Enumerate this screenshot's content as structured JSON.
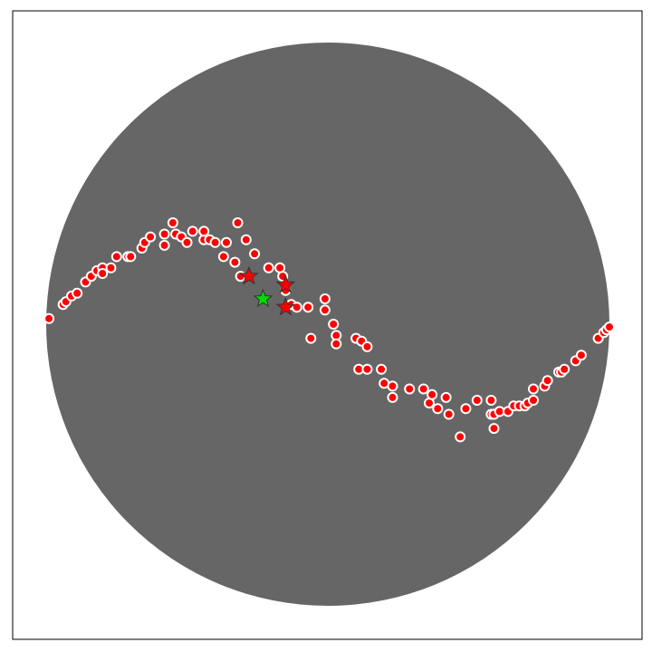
{
  "chart_data": {
    "type": "scatter",
    "title": "",
    "xlabel": "",
    "ylabel": "",
    "grid": false,
    "legend": "none",
    "xlim": [
      -1.0,
      1.0
    ],
    "ylim": [
      -1.0,
      1.0
    ],
    "colors": {
      "disk": "#666666",
      "point_fill": "#ff0000",
      "point_edge": "#ffffff",
      "star_fill_red": "#ff0000",
      "star_fill_green": "#00dd00",
      "star_edge": "#333333",
      "frame": "#000000"
    },
    "circle_points": [
      [
        -0.99,
        0.02
      ],
      [
        -0.94,
        0.07
      ],
      [
        -0.93,
        0.08
      ],
      [
        -0.91,
        0.1
      ],
      [
        -0.89,
        0.11
      ],
      [
        -0.86,
        0.15
      ],
      [
        -0.84,
        0.17
      ],
      [
        -0.82,
        0.19
      ],
      [
        -0.8,
        0.2
      ],
      [
        -0.8,
        0.18
      ],
      [
        -0.77,
        0.2
      ],
      [
        -0.75,
        0.24
      ],
      [
        -0.71,
        0.24
      ],
      [
        -0.7,
        0.24
      ],
      [
        -0.66,
        0.27
      ],
      [
        -0.65,
        0.29
      ],
      [
        -0.63,
        0.31
      ],
      [
        -0.58,
        0.32
      ],
      [
        -0.58,
        0.28
      ],
      [
        -0.55,
        0.36
      ],
      [
        -0.54,
        0.32
      ],
      [
        -0.52,
        0.31
      ],
      [
        -0.5,
        0.29
      ],
      [
        -0.48,
        0.33
      ],
      [
        -0.44,
        0.3
      ],
      [
        -0.44,
        0.33
      ],
      [
        -0.42,
        0.3
      ],
      [
        -0.4,
        0.29
      ],
      [
        -0.37,
        0.24
      ],
      [
        -0.36,
        0.29
      ],
      [
        -0.33,
        0.22
      ],
      [
        -0.32,
        0.36
      ],
      [
        -0.31,
        0.17
      ],
      [
        -0.29,
        0.3
      ],
      [
        -0.26,
        0.25
      ],
      [
        -0.21,
        0.2
      ],
      [
        -0.17,
        0.2
      ],
      [
        -0.16,
        0.17
      ],
      [
        -0.15,
        0.12
      ],
      [
        -0.13,
        0.07
      ],
      [
        -0.11,
        0.06
      ],
      [
        -0.07,
        0.06
      ],
      [
        -0.06,
        -0.05
      ],
      [
        -0.01,
        0.09
      ],
      [
        -0.01,
        0.05
      ],
      [
        0.02,
        0.0
      ],
      [
        0.03,
        -0.04
      ],
      [
        0.03,
        -0.07
      ],
      [
        0.1,
        -0.05
      ],
      [
        0.12,
        -0.06
      ],
      [
        0.14,
        -0.08
      ],
      [
        0.11,
        -0.16
      ],
      [
        0.14,
        -0.16
      ],
      [
        0.19,
        -0.16
      ],
      [
        0.2,
        -0.21
      ],
      [
        0.23,
        -0.22
      ],
      [
        0.23,
        -0.26
      ],
      [
        0.29,
        -0.23
      ],
      [
        0.34,
        -0.23
      ],
      [
        0.36,
        -0.28
      ],
      [
        0.37,
        -0.25
      ],
      [
        0.39,
        -0.3
      ],
      [
        0.42,
        -0.26
      ],
      [
        0.43,
        -0.32
      ],
      [
        0.47,
        -0.4
      ],
      [
        0.49,
        -0.3
      ],
      [
        0.53,
        -0.27
      ],
      [
        0.58,
        -0.27
      ],
      [
        0.58,
        -0.32
      ],
      [
        0.59,
        -0.37
      ],
      [
        0.59,
        -0.32
      ],
      [
        0.61,
        -0.31
      ],
      [
        0.64,
        -0.31
      ],
      [
        0.66,
        -0.29
      ],
      [
        0.68,
        -0.29
      ],
      [
        0.7,
        -0.29
      ],
      [
        0.71,
        -0.28
      ],
      [
        0.73,
        -0.23
      ],
      [
        0.73,
        -0.27
      ],
      [
        0.77,
        -0.22
      ],
      [
        0.78,
        -0.2
      ],
      [
        0.82,
        -0.17
      ],
      [
        0.83,
        -0.17
      ],
      [
        0.84,
        -0.16
      ],
      [
        0.88,
        -0.13
      ],
      [
        0.9,
        -0.11
      ],
      [
        0.96,
        -0.05
      ],
      [
        0.98,
        -0.03
      ],
      [
        0.99,
        -0.02
      ],
      [
        1.0,
        -0.01
      ]
    ],
    "star_points": [
      {
        "x": -0.28,
        "y": 0.17,
        "color": "red"
      },
      {
        "x": -0.15,
        "y": 0.14,
        "color": "red"
      },
      {
        "x": -0.15,
        "y": 0.06,
        "color": "red"
      },
      {
        "x": -0.23,
        "y": 0.09,
        "color": "green"
      }
    ]
  }
}
